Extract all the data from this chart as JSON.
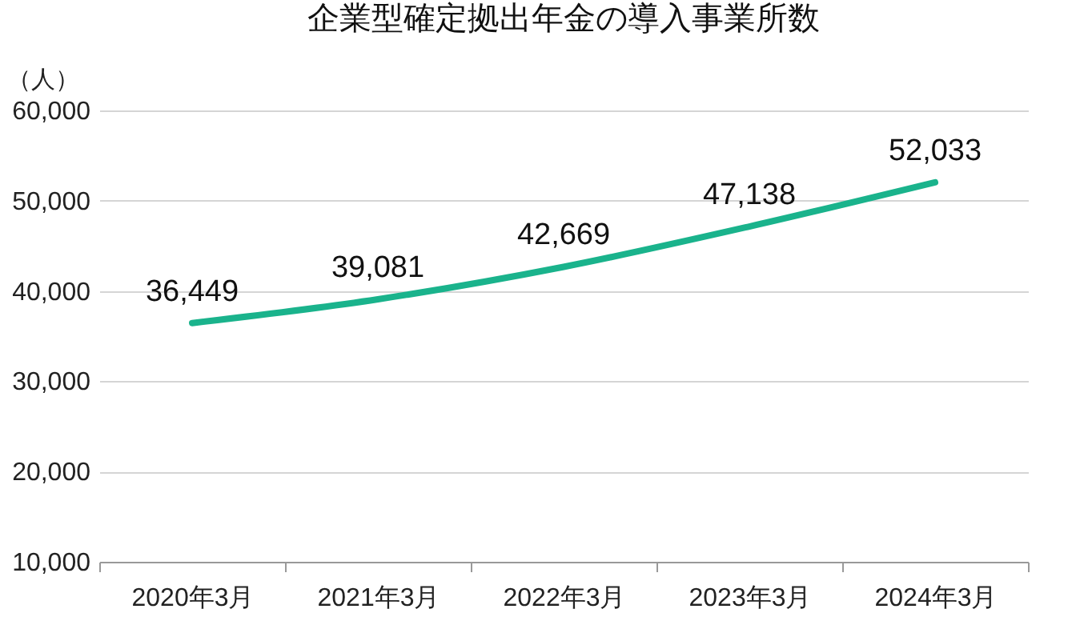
{
  "chart_data": {
    "type": "line",
    "title": "企業型確定拠出年金の導入事業所数",
    "ylabel": "（人）",
    "categories": [
      "2020年3月",
      "2021年3月",
      "2022年3月",
      "2023年3月",
      "2024年3月"
    ],
    "series": [
      {
        "color": "#1ab38c",
        "values": [
          36449,
          39081,
          42669,
          47138,
          52033
        ],
        "value_labels": [
          "36,449",
          "39,081",
          "42,669",
          "47,138",
          "52,033"
        ]
      }
    ],
    "ylim": [
      10000,
      60000
    ],
    "yticks": [
      {
        "value": 10000,
        "label": "10,000"
      },
      {
        "value": 20000,
        "label": "20,000"
      },
      {
        "value": 30000,
        "label": "30,000"
      },
      {
        "value": 40000,
        "label": "40,000"
      },
      {
        "value": 50000,
        "label": "50,000"
      },
      {
        "value": 60000,
        "label": "60,000"
      }
    ],
    "grid": "y",
    "marker": "none",
    "line_style": "solid",
    "legend": false
  }
}
